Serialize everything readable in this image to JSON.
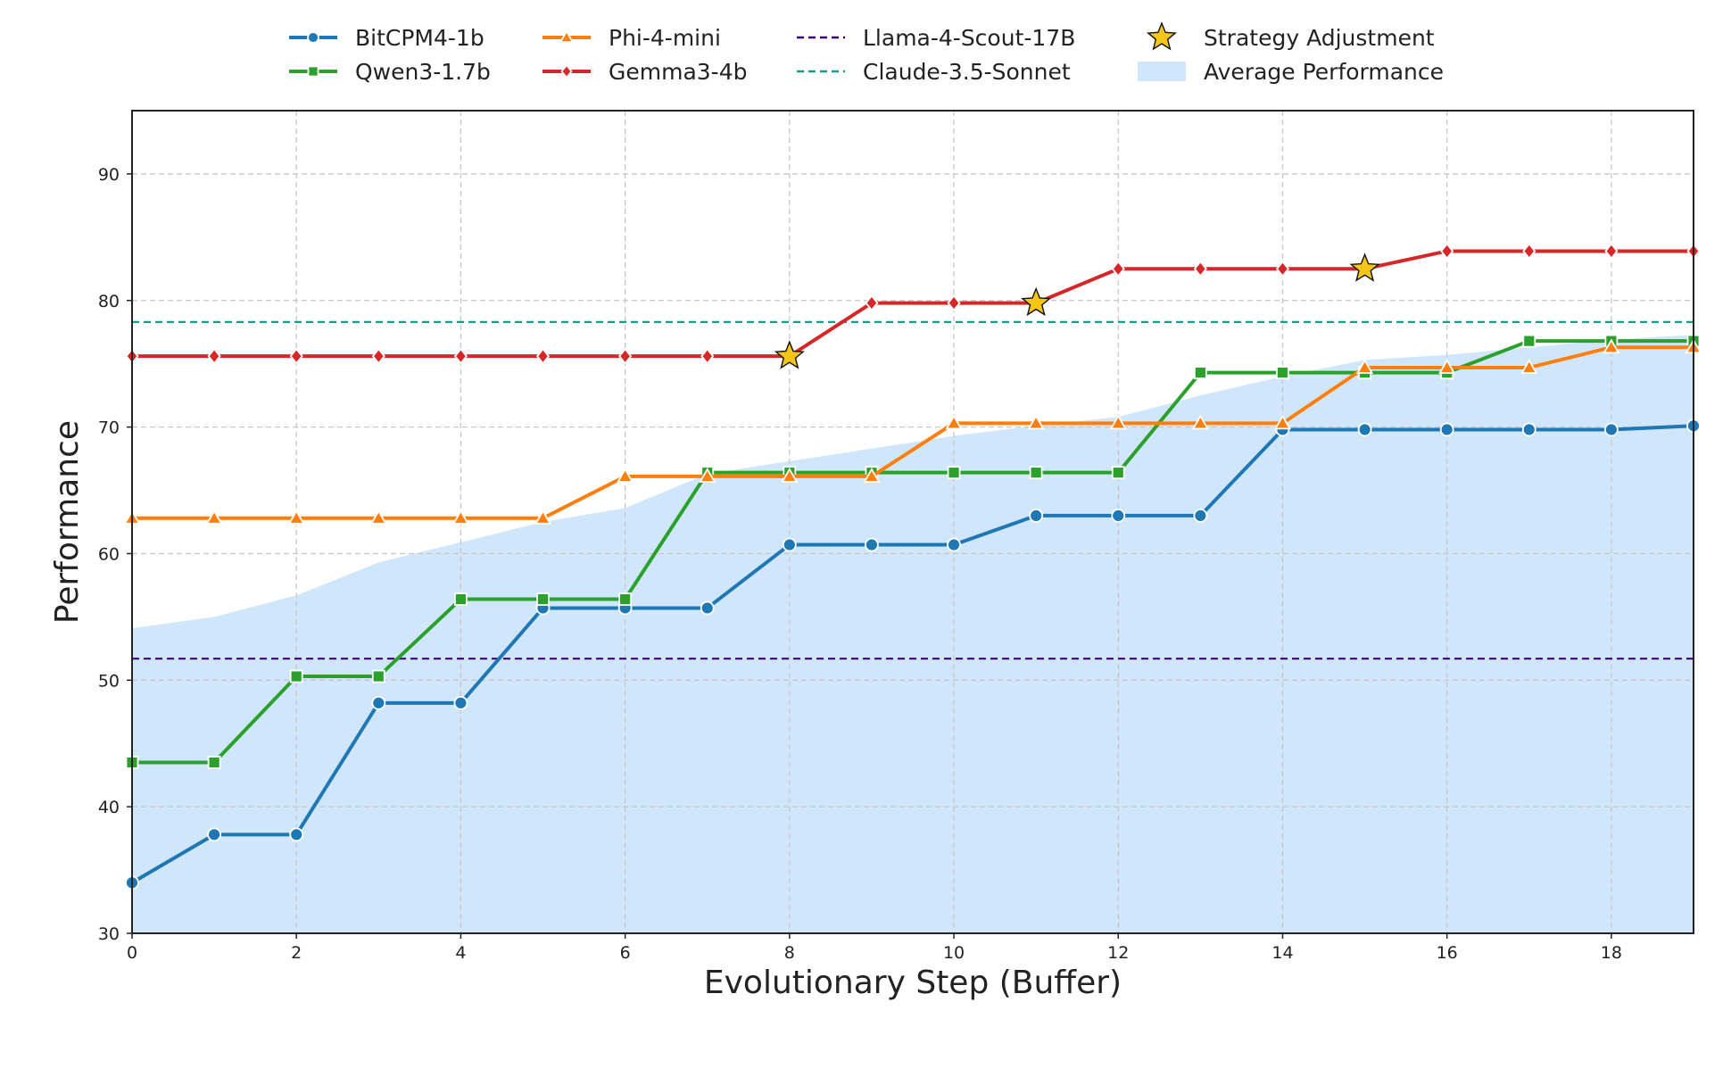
{
  "chart_data": {
    "type": "line",
    "title": "",
    "xlabel": "Evolutionary Step (Buffer)",
    "ylabel": "Performance",
    "xlim": [
      0,
      19
    ],
    "ylim": [
      30,
      95
    ],
    "xticks": [
      0,
      2,
      4,
      6,
      8,
      10,
      12,
      14,
      16,
      18
    ],
    "yticks": [
      30,
      40,
      50,
      60,
      70,
      80,
      90
    ],
    "grid": true,
    "legend_position": "top-center",
    "x": [
      0,
      1,
      2,
      3,
      4,
      5,
      6,
      7,
      8,
      9,
      10,
      11,
      12,
      13,
      14,
      15,
      16,
      17,
      18,
      19
    ],
    "series": [
      {
        "name": "BitCPM4-1b",
        "color": "#1f77b4",
        "marker": "circle",
        "values": [
          34.0,
          37.8,
          37.8,
          48.2,
          48.2,
          55.7,
          55.7,
          55.7,
          60.7,
          60.7,
          60.7,
          63.0,
          63.0,
          63.0,
          69.8,
          69.8,
          69.8,
          69.8,
          69.8,
          70.1
        ]
      },
      {
        "name": "Qwen3-1.7b",
        "color": "#2ca02c",
        "marker": "square",
        "values": [
          43.5,
          43.5,
          50.3,
          50.3,
          56.4,
          56.4,
          56.4,
          66.4,
          66.4,
          66.4,
          66.4,
          66.4,
          66.4,
          74.3,
          74.3,
          74.3,
          74.3,
          76.8,
          76.8,
          76.8
        ]
      },
      {
        "name": "Phi-4-mini",
        "color": "#ff7f0e",
        "marker": "triangle",
        "values": [
          62.8,
          62.8,
          62.8,
          62.8,
          62.8,
          62.8,
          66.1,
          66.1,
          66.1,
          66.1,
          70.3,
          70.3,
          70.3,
          70.3,
          70.3,
          74.7,
          74.7,
          74.7,
          76.3,
          76.3
        ]
      },
      {
        "name": "Gemma3-4b",
        "color": "#d62728",
        "marker": "diamond",
        "values": [
          75.6,
          75.6,
          75.6,
          75.6,
          75.6,
          75.6,
          75.6,
          75.6,
          75.6,
          79.8,
          79.8,
          79.8,
          82.5,
          82.5,
          82.5,
          82.5,
          83.9,
          83.9,
          83.9,
          83.9
        ]
      }
    ],
    "reference_lines": [
      {
        "name": "Llama-4-Scout-17B",
        "value": 51.7,
        "color": "#3f007d",
        "style": "dashed"
      },
      {
        "name": "Claude-3.5-Sonnet",
        "value": 78.3,
        "color": "#1a9a8a",
        "style": "dashed"
      }
    ],
    "strategy_adjustments": {
      "name": "Strategy Adjustment",
      "color": "#f5c518",
      "points": [
        [
          8,
          75.6
        ],
        [
          11,
          79.8
        ],
        [
          15,
          82.5
        ]
      ]
    },
    "average_band": {
      "name": "Average Performance",
      "color": "#d0e7fb",
      "values": [
        54.1,
        55.0,
        56.7,
        59.3,
        60.9,
        62.5,
        63.6,
        66.3,
        67.3,
        68.3,
        69.3,
        70.1,
        70.8,
        72.5,
        74.0,
        75.3,
        75.7,
        76.3,
        76.9,
        77.3
      ]
    }
  },
  "legend": {
    "items": [
      {
        "label": "BitCPM4-1b",
        "kind": "line-marker",
        "color": "#1f77b4",
        "marker": "circle"
      },
      {
        "label": "Qwen3-1.7b",
        "kind": "line-marker",
        "color": "#2ca02c",
        "marker": "square"
      },
      {
        "label": "Phi-4-mini",
        "kind": "line-marker",
        "color": "#ff7f0e",
        "marker": "triangle"
      },
      {
        "label": "Gemma3-4b",
        "kind": "line-marker",
        "color": "#d62728",
        "marker": "diamond"
      },
      {
        "label": "Llama-4-Scout-17B",
        "kind": "dashed",
        "color": "#3f007d"
      },
      {
        "label": "Claude-3.5-Sonnet",
        "kind": "dashed",
        "color": "#1a9a8a"
      },
      {
        "label": "Strategy Adjustment",
        "kind": "star",
        "color": "#f5c518"
      },
      {
        "label": "Average Performance",
        "kind": "patch",
        "color": "#d0e7fb"
      }
    ]
  }
}
